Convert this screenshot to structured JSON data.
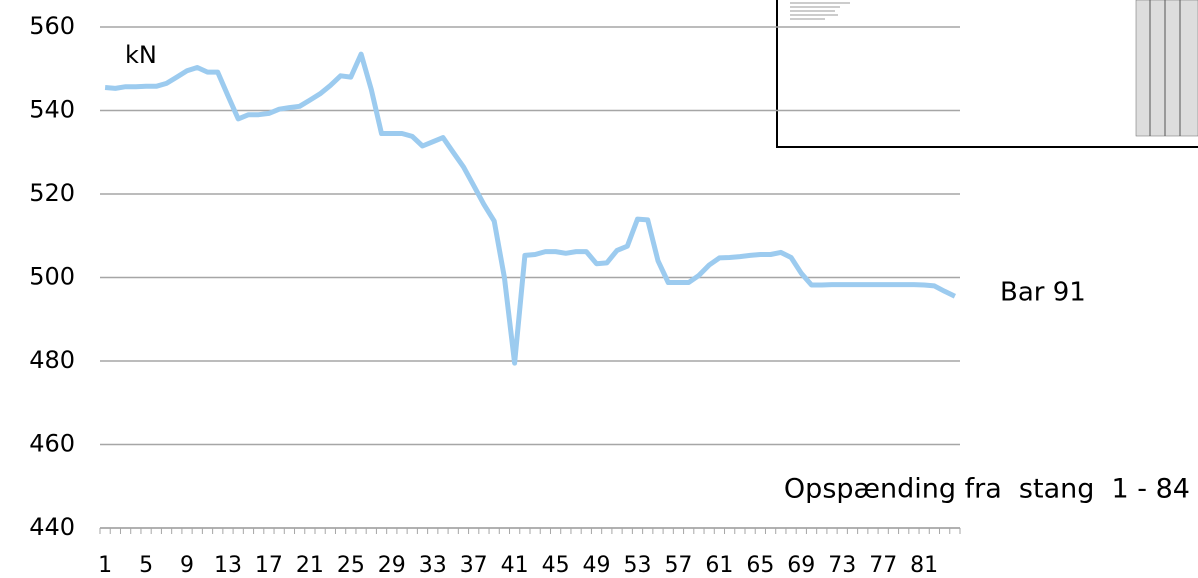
{
  "chart_data": {
    "type": "line",
    "unit_label": "kN",
    "annotation": "Opspænding fra  stang  1 - 84",
    "categories": [
      1,
      null,
      null,
      null,
      5,
      null,
      null,
      null,
      9,
      null,
      null,
      null,
      13,
      null,
      null,
      null,
      17,
      null,
      null,
      null,
      21,
      null,
      null,
      null,
      25,
      null,
      null,
      null,
      29,
      null,
      null,
      null,
      33,
      null,
      null,
      null,
      37,
      null,
      null,
      null,
      41,
      null,
      null,
      null,
      45,
      null,
      null,
      null,
      49,
      null,
      null,
      null,
      53,
      null,
      null,
      null,
      57,
      null,
      null,
      null,
      61,
      null,
      null,
      null,
      65,
      null,
      null,
      null,
      69,
      null,
      null,
      null,
      73,
      null,
      null,
      null,
      77,
      null,
      null,
      null,
      81,
      null,
      null,
      null
    ],
    "series": [
      {
        "name": "Bar 91",
        "color": "#9ccbef",
        "values": [
          545.5,
          545.3,
          545.7,
          545.7,
          545.8,
          545.8,
          546.5,
          548,
          549.5,
          550.3,
          549.2,
          549.2,
          543.5,
          538,
          539,
          539,
          539.3,
          540.3,
          540.7,
          541,
          542.5,
          544,
          546,
          548.3,
          548,
          553.5,
          545,
          534.5,
          534.5,
          534.5,
          533.8,
          531.5,
          532.5,
          533.5,
          530,
          526.5,
          522,
          517.5,
          513.5,
          500,
          479.5,
          505.3,
          505.5,
          506.2,
          506.2,
          505.8,
          506.2,
          506.2,
          503.3,
          503.5,
          506.5,
          507.5,
          514,
          513.8,
          504,
          498.8,
          498.8,
          498.8,
          500.5,
          503,
          504.7,
          504.8,
          505,
          505.3,
          505.5,
          505.5,
          506,
          504.8,
          501,
          498.2,
          498.2,
          498.3,
          498.3,
          498.3,
          498.3,
          498.3,
          498.3,
          498.3,
          498.3,
          498.3,
          498.2,
          498,
          496.7,
          495.5
        ]
      }
    ],
    "ylim": [
      440,
      560
    ],
    "yticks": [
      440,
      460,
      480,
      500,
      520,
      540,
      560
    ],
    "grid": true
  }
}
